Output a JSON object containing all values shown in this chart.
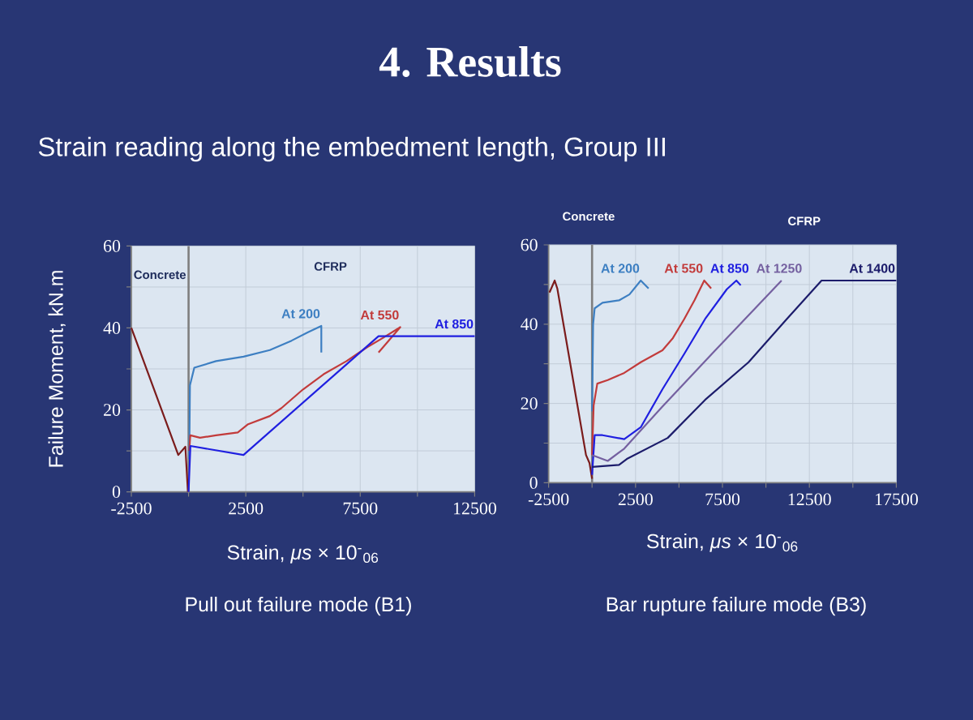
{
  "chart_data": [
    {
      "type": "line",
      "title": "4. Results",
      "subtitle": "Strain reading along the embedment length, Group III",
      "xlabel": "Strain, *μs* × 10$^{-}$$_{06}$",
      "ylabel": "Failure Moment, kN.m",
      "xlim": [
        -2500,
        12500
      ],
      "xticks": [
        -2500,
        {
          "value": 0,
          "label": null
        },
        2500,
        {
          "value": 5000,
          "label": null
        },
        7500,
        {
          "value": 10000,
          "label": null
        },
        12500
      ],
      "ylim": [
        0,
        60
      ],
      "yticks": [
        0,
        {
          "value": 10,
          "label": null
        },
        20,
        {
          "value": 30,
          "label": null
        },
        40,
        {
          "value": 50,
          "label": null
        },
        60
      ],
      "grid": true,
      "ref_lines": [
        {
          "axis": "x",
          "value": 0,
          "color": "#7f7f7f"
        }
      ],
      "annotations": [
        "Concrete",
        "CFRP",
        "Pull out failure mode (B1)"
      ],
      "series": [
        {
          "color": "#7b1c1c",
          "x": [
            -2500,
            -450,
            -140,
            -30
          ],
          "values": [
            40,
            9,
            11,
            0
          ]
        },
        {
          "name": "At 200",
          "color": "#3d7fc2",
          "x": [
            30,
            60,
            250,
            1200,
            2400,
            3550,
            4500,
            5200,
            5800,
            5800
          ],
          "values": [
            8,
            26,
            30.3,
            31.9,
            33,
            34.6,
            36.9,
            38.9,
            40.5,
            34
          ]
        },
        {
          "name": "At 550",
          "color": "#c23b3b",
          "x": [
            30,
            75,
            500,
            1200,
            2150,
            2600,
            3550,
            4050,
            5000,
            5900,
            6900,
            7800,
            8500,
            9250,
            8300
          ],
          "values": [
            10,
            13.8,
            13.2,
            13.8,
            14.5,
            16.5,
            18.5,
            20.4,
            25,
            28.7,
            31.9,
            35.3,
            37.6,
            40.2,
            34
          ]
        },
        {
          "name": "At 850",
          "color": "#1f1fe0",
          "x": [
            0,
            80,
            2400,
            8300,
            12500
          ],
          "values": [
            0,
            11.2,
            9,
            38,
            38
          ]
        }
      ]
    },
    {
      "type": "line",
      "xlabel": "Strain, *μs* × 10$^{-}$$_{06}$",
      "xlim": [
        -2500,
        17500
      ],
      "xticks": [
        -2500,
        {
          "value": 0,
          "label": null
        },
        2500,
        {
          "value": 5000,
          "label": null
        },
        7500,
        {
          "value": 10000,
          "label": null
        },
        12500,
        {
          "value": 15000,
          "label": null
        },
        17500
      ],
      "ylim": [
        0,
        60
      ],
      "yticks": [
        0,
        {
          "value": 10,
          "label": null
        },
        20,
        {
          "value": 30,
          "label": null
        },
        40,
        {
          "value": 50,
          "label": null
        },
        60
      ],
      "grid": true,
      "ref_lines": [
        {
          "axis": "x",
          "value": 0,
          "color": "#7f7f7f"
        }
      ],
      "annotations": [
        "Concrete",
        "CFRP",
        "Bar rupture failure mode (B3)"
      ],
      "series": [
        {
          "color": "#7b1c1c",
          "x": [
            -2450,
            -2150,
            -2000,
            -350,
            -150,
            0
          ],
          "values": [
            48,
            51,
            49,
            7,
            5,
            1
          ]
        },
        {
          "name": "At 200",
          "color": "#3d7fc2",
          "x": [
            0,
            60,
            150,
            600,
            1550,
            2150,
            2800,
            3250
          ],
          "values": [
            18,
            40,
            44,
            45.4,
            46,
            47.5,
            51,
            49
          ]
        },
        {
          "name": "At 550",
          "color": "#c23b3b",
          "x": [
            0,
            90,
            300,
            900,
            1850,
            2800,
            4050,
            4650,
            5300,
            5900,
            6450,
            6850
          ],
          "values": [
            7,
            19.5,
            25,
            25.9,
            27.7,
            30.4,
            33.4,
            36.5,
            41.3,
            46.1,
            51,
            49
          ]
        },
        {
          "name": "At 850",
          "color": "#1f1fe0",
          "x": [
            0,
            150,
            600,
            1850,
            2800,
            4050,
            5300,
            6500,
            7750,
            8300,
            8550
          ],
          "values": [
            2,
            12,
            12,
            11,
            14,
            23.6,
            32.5,
            41.3,
            48.8,
            51,
            49.8
          ]
        },
        {
          "name": "At 1250",
          "color": "#7460a0",
          "x": [
            0,
            900,
            1850,
            4000,
            7000,
            10900
          ],
          "values": [
            7,
            5.5,
            8.6,
            19,
            33,
            51
          ]
        },
        {
          "name": "At 1400",
          "color": "#1c1c6b",
          "x": [
            0,
            1550,
            2000,
            4350,
            6500,
            9000,
            11200,
            13200,
            17500
          ],
          "values": [
            4,
            4.5,
            6,
            11.3,
            20.9,
            30.4,
            41.3,
            51,
            51
          ]
        }
      ]
    }
  ]
}
